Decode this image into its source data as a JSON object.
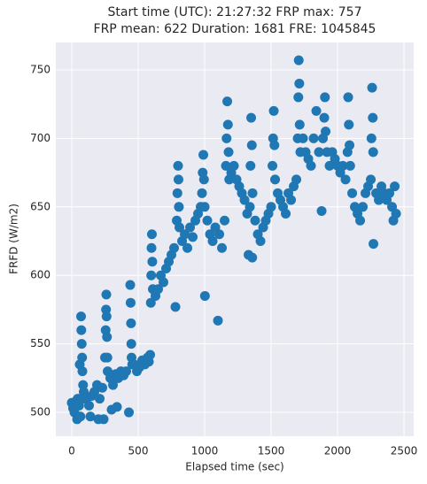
{
  "chart_data": {
    "type": "scatter",
    "title_lines": [
      "Start time (UTC): 21:27:32 FRP max: 757",
      "FRP mean: 622 Duration: 1681 FRE: 1045845"
    ],
    "x_label": "Elapsed time (sec)",
    "y_label": "FRFD (W/m2)",
    "color": "#1f77b4",
    "grid": true,
    "xlim": [
      -120,
      2573
    ],
    "ylim": [
      482.6,
      770
    ],
    "xticks": [
      0,
      500,
      1000,
      1500,
      2000,
      2500
    ],
    "yticks": [
      500,
      550,
      600,
      650,
      700,
      750
    ],
    "x": [
      0,
      10,
      20,
      30,
      40,
      45,
      55,
      60,
      65,
      70,
      72,
      75,
      78,
      80,
      85,
      90,
      95,
      110,
      130,
      140,
      150,
      170,
      190,
      200,
      210,
      230,
      240,
      250,
      255,
      258,
      260,
      262,
      265,
      268,
      270,
      290,
      300,
      310,
      330,
      340,
      350,
      370,
      390,
      410,
      430,
      440,
      443,
      446,
      448,
      450,
      455,
      470,
      490,
      510,
      530,
      550,
      570,
      580,
      590,
      595,
      598,
      600,
      603,
      606,
      610,
      630,
      650,
      670,
      690,
      710,
      730,
      750,
      770,
      780,
      790,
      795,
      800,
      803,
      806,
      810,
      830,
      850,
      870,
      890,
      910,
      930,
      950,
      970,
      980,
      985,
      990,
      995,
      1000,
      1002,
      1020,
      1040,
      1060,
      1080,
      1100,
      1110,
      1130,
      1150,
      1160,
      1165,
      1170,
      1175,
      1180,
      1185,
      1200,
      1220,
      1240,
      1260,
      1280,
      1300,
      1320,
      1330,
      1340,
      1345,
      1350,
      1355,
      1358,
      1360,
      1380,
      1400,
      1420,
      1440,
      1460,
      1480,
      1500,
      1510,
      1515,
      1520,
      1525,
      1530,
      1550,
      1570,
      1590,
      1610,
      1630,
      1650,
      1670,
      1690,
      1700,
      1705,
      1708,
      1712,
      1715,
      1720,
      1740,
      1760,
      1780,
      1800,
      1820,
      1840,
      1860,
      1880,
      1890,
      1900,
      1905,
      1910,
      1920,
      1940,
      1960,
      1980,
      2000,
      2020,
      2040,
      2060,
      2075,
      2080,
      2085,
      2090,
      2095,
      2110,
      2130,
      2150,
      2170,
      2190,
      2210,
      2230,
      2250,
      2255,
      2260,
      2265,
      2268,
      2270,
      2290,
      2310,
      2330,
      2350,
      2370,
      2390,
      2410,
      2420,
      2430,
      2440
    ],
    "values": [
      507,
      503,
      500,
      508,
      495,
      510,
      505,
      535,
      497,
      570,
      560,
      550,
      540,
      530,
      520,
      515,
      510,
      510,
      505,
      497,
      512,
      515,
      520,
      495,
      510,
      518,
      495,
      540,
      560,
      575,
      586,
      570,
      555,
      540,
      530,
      525,
      502,
      520,
      528,
      504,
      525,
      530,
      527,
      530,
      500,
      593,
      580,
      565,
      550,
      540,
      535,
      535,
      530,
      533,
      538,
      535,
      540,
      537,
      542,
      580,
      600,
      620,
      630,
      610,
      590,
      585,
      590,
      600,
      595,
      605,
      610,
      615,
      620,
      577,
      640,
      660,
      680,
      670,
      650,
      635,
      625,
      630,
      620,
      635,
      628,
      640,
      645,
      650,
      660,
      675,
      688,
      670,
      650,
      585,
      640,
      630,
      625,
      635,
      567,
      630,
      620,
      640,
      680,
      700,
      727,
      710,
      690,
      670,
      675,
      680,
      670,
      665,
      660,
      655,
      645,
      615,
      650,
      680,
      715,
      695,
      613,
      660,
      640,
      630,
      625,
      635,
      640,
      645,
      650,
      680,
      700,
      720,
      695,
      670,
      660,
      655,
      650,
      645,
      660,
      655,
      665,
      670,
      700,
      730,
      757,
      740,
      710,
      690,
      700,
      690,
      685,
      680,
      700,
      720,
      690,
      647,
      700,
      715,
      730,
      705,
      690,
      680,
      690,
      685,
      680,
      675,
      680,
      670,
      690,
      730,
      710,
      695,
      680,
      660,
      650,
      645,
      640,
      650,
      660,
      665,
      670,
      700,
      737,
      715,
      690,
      623,
      660,
      655,
      665,
      660,
      655,
      660,
      650,
      640,
      665,
      645
    ]
  }
}
